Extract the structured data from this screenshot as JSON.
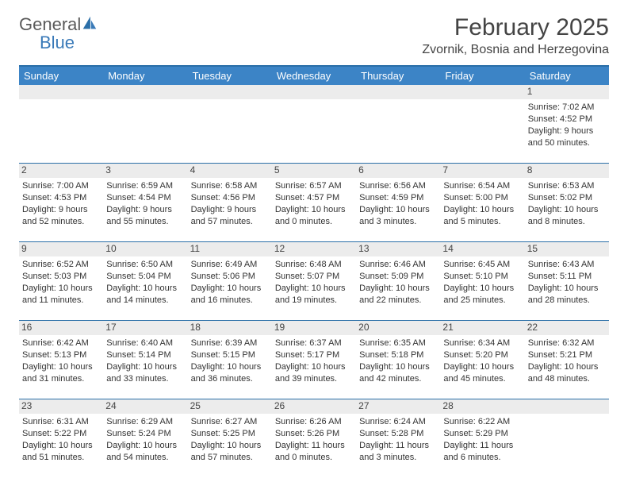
{
  "logo": {
    "word1": "General",
    "word2": "Blue"
  },
  "title": "February 2025",
  "location": "Zvornik, Bosnia and Herzegovina",
  "colors": {
    "header_bg": "#3c84c6",
    "header_border": "#2b6fa8",
    "gray": "#ececec",
    "text": "#333333",
    "logo_gray": "#5a5a5a",
    "logo_blue": "#3a7ab8"
  },
  "day_names": [
    "Sunday",
    "Monday",
    "Tuesday",
    "Wednesday",
    "Thursday",
    "Friday",
    "Saturday"
  ],
  "weeks": [
    [
      null,
      null,
      null,
      null,
      null,
      null,
      {
        "d": "1",
        "sunrise": "7:02 AM",
        "sunset": "4:52 PM",
        "day_h": 9,
        "day_m": 50
      }
    ],
    [
      {
        "d": "2",
        "sunrise": "7:00 AM",
        "sunset": "4:53 PM",
        "day_h": 9,
        "day_m": 52
      },
      {
        "d": "3",
        "sunrise": "6:59 AM",
        "sunset": "4:54 PM",
        "day_h": 9,
        "day_m": 55
      },
      {
        "d": "4",
        "sunrise": "6:58 AM",
        "sunset": "4:56 PM",
        "day_h": 9,
        "day_m": 57
      },
      {
        "d": "5",
        "sunrise": "6:57 AM",
        "sunset": "4:57 PM",
        "day_h": 10,
        "day_m": 0
      },
      {
        "d": "6",
        "sunrise": "6:56 AM",
        "sunset": "4:59 PM",
        "day_h": 10,
        "day_m": 3
      },
      {
        "d": "7",
        "sunrise": "6:54 AM",
        "sunset": "5:00 PM",
        "day_h": 10,
        "day_m": 5
      },
      {
        "d": "8",
        "sunrise": "6:53 AM",
        "sunset": "5:02 PM",
        "day_h": 10,
        "day_m": 8
      }
    ],
    [
      {
        "d": "9",
        "sunrise": "6:52 AM",
        "sunset": "5:03 PM",
        "day_h": 10,
        "day_m": 11
      },
      {
        "d": "10",
        "sunrise": "6:50 AM",
        "sunset": "5:04 PM",
        "day_h": 10,
        "day_m": 14
      },
      {
        "d": "11",
        "sunrise": "6:49 AM",
        "sunset": "5:06 PM",
        "day_h": 10,
        "day_m": 16
      },
      {
        "d": "12",
        "sunrise": "6:48 AM",
        "sunset": "5:07 PM",
        "day_h": 10,
        "day_m": 19
      },
      {
        "d": "13",
        "sunrise": "6:46 AM",
        "sunset": "5:09 PM",
        "day_h": 10,
        "day_m": 22
      },
      {
        "d": "14",
        "sunrise": "6:45 AM",
        "sunset": "5:10 PM",
        "day_h": 10,
        "day_m": 25
      },
      {
        "d": "15",
        "sunrise": "6:43 AM",
        "sunset": "5:11 PM",
        "day_h": 10,
        "day_m": 28
      }
    ],
    [
      {
        "d": "16",
        "sunrise": "6:42 AM",
        "sunset": "5:13 PM",
        "day_h": 10,
        "day_m": 31
      },
      {
        "d": "17",
        "sunrise": "6:40 AM",
        "sunset": "5:14 PM",
        "day_h": 10,
        "day_m": 33
      },
      {
        "d": "18",
        "sunrise": "6:39 AM",
        "sunset": "5:15 PM",
        "day_h": 10,
        "day_m": 36
      },
      {
        "d": "19",
        "sunrise": "6:37 AM",
        "sunset": "5:17 PM",
        "day_h": 10,
        "day_m": 39
      },
      {
        "d": "20",
        "sunrise": "6:35 AM",
        "sunset": "5:18 PM",
        "day_h": 10,
        "day_m": 42
      },
      {
        "d": "21",
        "sunrise": "6:34 AM",
        "sunset": "5:20 PM",
        "day_h": 10,
        "day_m": 45
      },
      {
        "d": "22",
        "sunrise": "6:32 AM",
        "sunset": "5:21 PM",
        "day_h": 10,
        "day_m": 48
      }
    ],
    [
      {
        "d": "23",
        "sunrise": "6:31 AM",
        "sunset": "5:22 PM",
        "day_h": 10,
        "day_m": 51
      },
      {
        "d": "24",
        "sunrise": "6:29 AM",
        "sunset": "5:24 PM",
        "day_h": 10,
        "day_m": 54
      },
      {
        "d": "25",
        "sunrise": "6:27 AM",
        "sunset": "5:25 PM",
        "day_h": 10,
        "day_m": 57
      },
      {
        "d": "26",
        "sunrise": "6:26 AM",
        "sunset": "5:26 PM",
        "day_h": 11,
        "day_m": 0
      },
      {
        "d": "27",
        "sunrise": "6:24 AM",
        "sunset": "5:28 PM",
        "day_h": 11,
        "day_m": 3
      },
      {
        "d": "28",
        "sunrise": "6:22 AM",
        "sunset": "5:29 PM",
        "day_h": 11,
        "day_m": 6
      },
      null
    ]
  ],
  "labels": {
    "sunrise": "Sunrise:",
    "sunset": "Sunset:",
    "daylight": "Daylight:",
    "hours": "hours",
    "and": "and",
    "minutes": "minutes."
  }
}
